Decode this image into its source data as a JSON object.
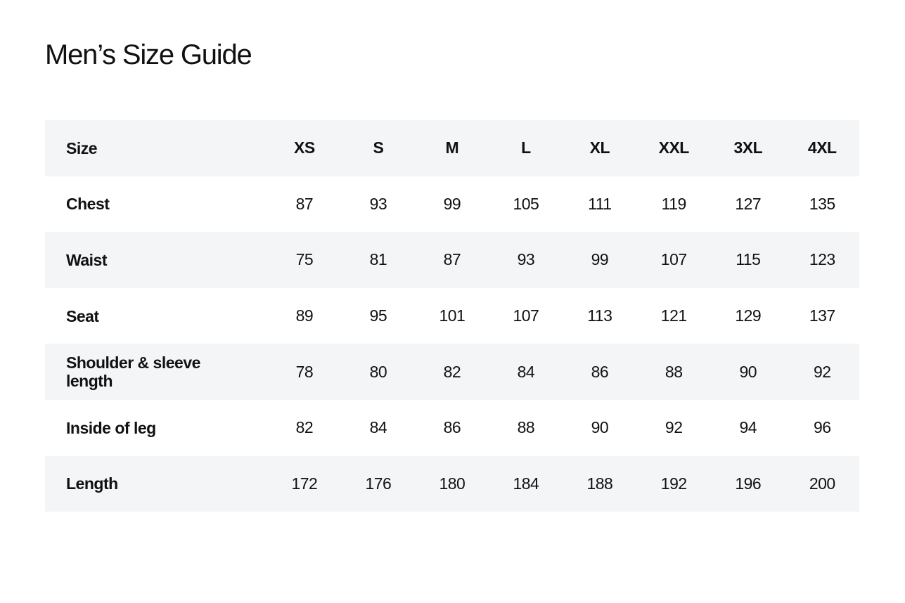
{
  "title": "Men’s Size Guide",
  "table": {
    "header": {
      "label": "Size",
      "sizes": [
        "XS",
        "S",
        "M",
        "L",
        "XL",
        "XXL",
        "3XL",
        "4XL"
      ]
    },
    "rows": [
      {
        "label": "Chest",
        "values": [
          "87",
          "93",
          "99",
          "105",
          "111",
          "119",
          "127",
          "135"
        ]
      },
      {
        "label": "Waist",
        "values": [
          "75",
          "81",
          "87",
          "93",
          "99",
          "107",
          "115",
          "123"
        ]
      },
      {
        "label": "Seat",
        "values": [
          "89",
          "95",
          "101",
          "107",
          "113",
          "121",
          "129",
          "137"
        ]
      },
      {
        "label": "Shoulder & sleeve length",
        "values": [
          "78",
          "80",
          "82",
          "84",
          "86",
          "88",
          "90",
          "92"
        ]
      },
      {
        "label": "Inside of leg",
        "values": [
          "82",
          "84",
          "86",
          "88",
          "90",
          "92",
          "94",
          "96"
        ]
      },
      {
        "label": "Length",
        "values": [
          "172",
          "176",
          "180",
          "184",
          "188",
          "192",
          "196",
          "200"
        ]
      }
    ]
  },
  "colors": {
    "row_shade": "#f4f5f7",
    "text": "#111111"
  }
}
